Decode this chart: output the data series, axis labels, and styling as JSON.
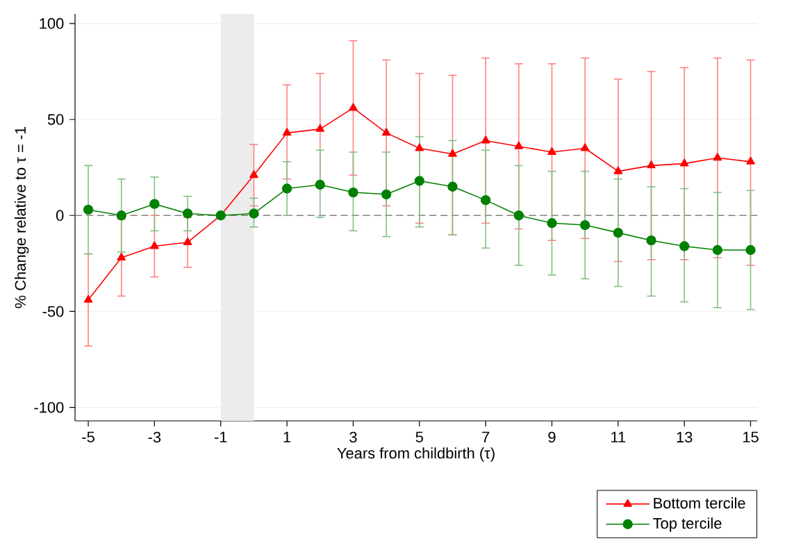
{
  "chart_data": {
    "type": "line",
    "xlabel": "Years from childbirth (τ)",
    "ylabel": "% Change relative to τ = -1",
    "x": [
      -5,
      -4,
      -3,
      -2,
      -1,
      0,
      1,
      2,
      3,
      4,
      5,
      6,
      7,
      8,
      9,
      10,
      11,
      12,
      13,
      14,
      15
    ],
    "series": [
      {
        "name": "Bottom tercile",
        "color": "#ff0000",
        "marker": "triangle",
        "values": [
          -44,
          -22,
          -16,
          -14,
          0,
          21,
          43,
          45,
          56,
          43,
          35,
          32,
          39,
          36,
          33,
          35,
          23,
          26,
          27,
          30,
          28
        ],
        "errors": [
          [
            -68,
            -20
          ],
          [
            -42,
            -2
          ],
          [
            -32,
            0
          ],
          [
            -27,
            -1
          ],
          null,
          [
            5,
            37
          ],
          [
            19,
            68
          ],
          [
            16,
            74
          ],
          [
            21,
            91
          ],
          [
            5,
            81
          ],
          [
            -4,
            74
          ],
          [
            -10,
            73
          ],
          [
            -4,
            82
          ],
          [
            -7,
            79
          ],
          [
            -13,
            79
          ],
          [
            -12,
            82
          ],
          [
            -24,
            71
          ],
          [
            -23,
            75
          ],
          [
            -23,
            77
          ],
          [
            -22,
            82
          ],
          [
            -26,
            81
          ]
        ]
      },
      {
        "name": "Top tercile",
        "color": "#008000",
        "marker": "circle",
        "values": [
          3,
          0,
          6,
          1,
          0,
          1,
          14,
          16,
          12,
          11,
          18,
          15,
          8,
          0,
          -4,
          -5,
          -9,
          -13,
          -16,
          -18,
          -18
        ],
        "errors": [
          [
            -20,
            26
          ],
          [
            -19,
            19
          ],
          [
            -8,
            20
          ],
          [
            -8,
            10
          ],
          null,
          [
            -6,
            9
          ],
          [
            0,
            28
          ],
          [
            -1,
            34
          ],
          [
            -8,
            33
          ],
          [
            -11,
            33
          ],
          [
            -6,
            41
          ],
          [
            -10,
            39
          ],
          [
            -17,
            34
          ],
          [
            -26,
            26
          ],
          [
            -31,
            23
          ],
          [
            -33,
            23
          ],
          [
            -37,
            19
          ],
          [
            -42,
            15
          ],
          [
            -45,
            14
          ],
          [
            -48,
            12
          ],
          [
            -49,
            13
          ]
        ]
      }
    ],
    "xlim": [
      -5.4,
      15.2
    ],
    "ylim": [
      -107,
      105
    ],
    "xticks": [
      -5,
      -3,
      -1,
      1,
      3,
      5,
      7,
      9,
      11,
      13,
      15
    ],
    "yticks": [
      -100,
      -50,
      0,
      50,
      100
    ],
    "grid": "y",
    "legend": "bottom right",
    "line_style": "solid",
    "ref_lines": [
      {
        "axis": "y",
        "value": 0,
        "color": "#808080",
        "line_style": "dashed"
      }
    ],
    "bands": [
      {
        "axis": "x",
        "from": -1,
        "to": 0,
        "color": "#ececec"
      }
    ]
  }
}
